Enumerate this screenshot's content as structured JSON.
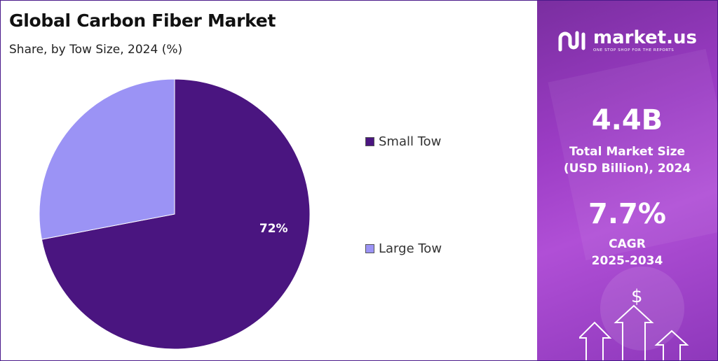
{
  "header": {
    "title": "Global Carbon Fiber Market",
    "subtitle": "Share, by Tow Size, 2024 (%)"
  },
  "chart_data": {
    "type": "pie",
    "title": "Global Carbon Fiber Market",
    "subtitle": "Share, by Tow Size, 2024 (%)",
    "legend_position": "right",
    "slices": [
      {
        "label": "Small Tow",
        "value": 72,
        "data_label": "72%",
        "color": "#4a1580"
      },
      {
        "label": "Large Tow",
        "value": 28,
        "data_label": "",
        "color": "#9b93f5"
      }
    ]
  },
  "sidebar": {
    "brand_name": "market.us",
    "brand_tagline": "ONE STOP SHOP FOR THE REPORTS",
    "market_size_value": "4.4B",
    "market_size_label_line1": "Total Market Size",
    "market_size_label_line2": "(USD Billion), 2024",
    "cagr_value": "7.7%",
    "cagr_label_line1": "CAGR",
    "cagr_label_line2": "2025-2034",
    "dollar_symbol": "$",
    "icons": [
      "market-us-logo-icon",
      "dollar-icon",
      "up-arrow-icon"
    ]
  },
  "colors": {
    "accent_purple": "#4a1580",
    "light_purple": "#9b93f5",
    "panel_gradient_start": "#7a2ea0",
    "panel_gradient_end": "#b04fd6"
  }
}
